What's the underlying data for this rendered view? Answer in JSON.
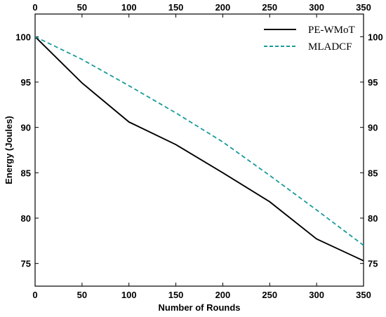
{
  "chart_data": {
    "type": "line",
    "xlabel": "Number of Rounds",
    "ylabel": "Energy (Joules)",
    "xlim": [
      0,
      350
    ],
    "ylim": [
      72.5,
      102.5
    ],
    "xticks": [
      0,
      50,
      100,
      150,
      200,
      250,
      300,
      350
    ],
    "yticks": [
      75,
      80,
      85,
      90,
      95,
      100
    ],
    "x_axis_mirrored_top": true,
    "y_axis_mirrored_right": true,
    "grid": false,
    "legend_position": "top-right",
    "series": [
      {
        "name": "PE-WMoT",
        "color": "#000000",
        "style": "solid",
        "x": [
          0,
          50,
          100,
          150,
          200,
          250,
          300,
          350
        ],
        "y": [
          100,
          94.9,
          90.6,
          88.1,
          85.0,
          81.8,
          77.7,
          75.3
        ]
      },
      {
        "name": "MLADCF",
        "color": "#1a9a9a",
        "style": "dashed",
        "x": [
          0,
          50,
          100,
          150,
          200,
          250,
          300,
          350
        ],
        "y": [
          100,
          97.5,
          94.6,
          91.6,
          88.4,
          84.7,
          80.9,
          77.0
        ]
      }
    ]
  }
}
